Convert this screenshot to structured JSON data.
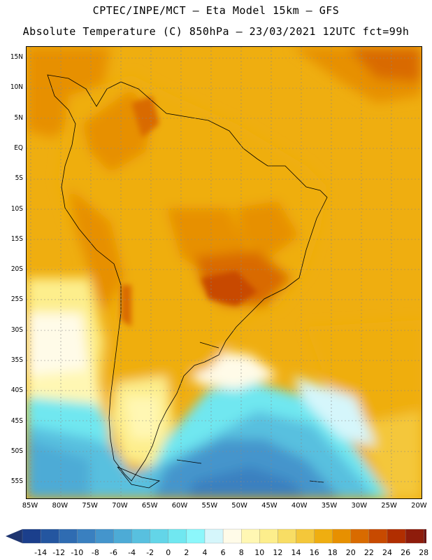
{
  "header": {
    "line1": "CPTEC/INPE/MCT —  Eta Model 15km — GFS",
    "line2": "Absolute Temperature (C) 850hPa — 23/03/2021 12UTC fct=99h"
  },
  "map": {
    "lat_labels": [
      "15N",
      "10N",
      "5N",
      "EQ",
      "5S",
      "10S",
      "15S",
      "20S",
      "25S",
      "30S",
      "35S",
      "40S",
      "45S",
      "50S",
      "55S"
    ],
    "lon_labels": [
      "85W",
      "80W",
      "75W",
      "70W",
      "65W",
      "60W",
      "55W",
      "50W",
      "45W",
      "40W",
      "35W",
      "30W",
      "25W",
      "20W"
    ]
  },
  "colorbar": {
    "ticks": [
      "-14",
      "-12",
      "-10",
      "-8",
      "-6",
      "-4",
      "-2",
      "0",
      "2",
      "4",
      "6",
      "8",
      "10",
      "12",
      "14",
      "16",
      "18",
      "20",
      "22",
      "24",
      "26",
      "28"
    ],
    "colors": [
      "#1b3f8c",
      "#2456a0",
      "#2f6cb2",
      "#3a80c0",
      "#4495cc",
      "#4dabd6",
      "#58c0df",
      "#63d5e8",
      "#70e7f0",
      "#8cf7fb",
      "#d5f6fb",
      "#fffbe8",
      "#fff7b3",
      "#fdee8c",
      "#f8dd64",
      "#f4c73a",
      "#efae10",
      "#e79000",
      "#d96b00",
      "#c84a00",
      "#b12e00",
      "#8e1c0b",
      "#6b1312"
    ],
    "under_color": "#1e3570",
    "over_color": "#8a0030"
  }
}
